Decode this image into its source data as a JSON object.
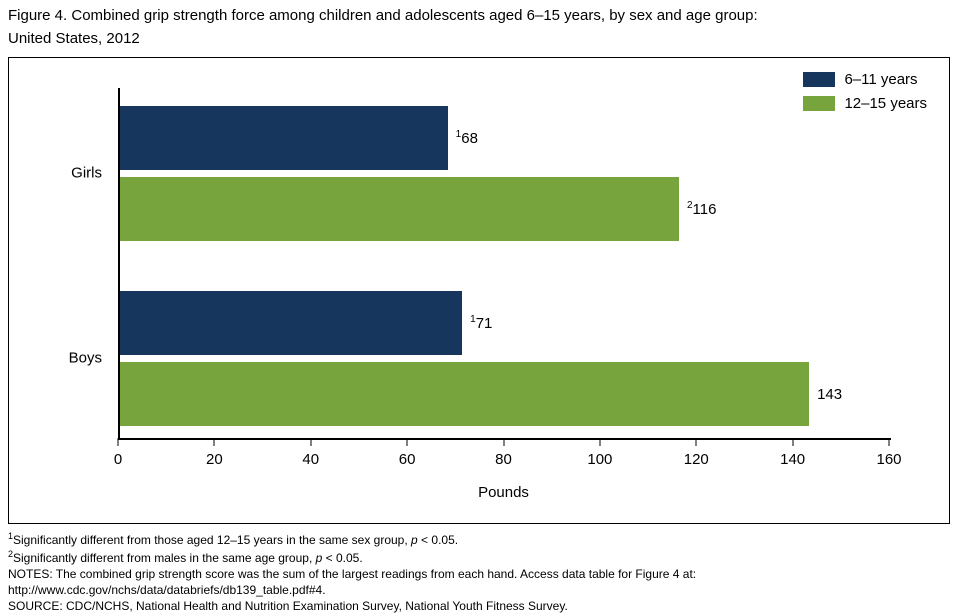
{
  "title": {
    "line1": "Figure 4. Combined grip strength force among children and adolescents aged 6–15 years, by sex and age group:",
    "line2": "United States, 2012"
  },
  "chart_data": {
    "type": "bar",
    "orientation": "horizontal",
    "title": "Combined grip strength force among children and adolescents aged 6–15 years, by sex and age group: United States, 2012",
    "categories": [
      "Girls",
      "Boys"
    ],
    "series": [
      {
        "name": "6–11 years",
        "color": "#17365d",
        "values": [
          68,
          71
        ],
        "value_labels": [
          {
            "sup": "1",
            "text": "68"
          },
          {
            "sup": "1",
            "text": "71"
          }
        ]
      },
      {
        "name": "12–15 years",
        "color": "#77a43d",
        "values": [
          116,
          143
        ],
        "value_labels": [
          {
            "sup": "2",
            "text": "116"
          },
          {
            "sup": "",
            "text": "143"
          }
        ]
      }
    ],
    "xlabel": "Pounds",
    "xlim": [
      0,
      160
    ],
    "xticks": [
      0,
      20,
      40,
      60,
      80,
      100,
      120,
      140,
      160
    ],
    "legend_position": "top-right",
    "grid": false
  },
  "footnotes": [
    {
      "sup": "1",
      "pre": "Significantly different from those aged 12–15 years in the same sex group, ",
      "italic": "p",
      "post": " < 0.05."
    },
    {
      "sup": "2",
      "pre": "Significantly different from males in the same age group, ",
      "italic": "p",
      "post": " < 0.05."
    },
    {
      "sup": "",
      "pre": "NOTES: The combined grip strength score was the sum of the largest readings from each hand. Access data table for Figure 4 at:",
      "italic": "",
      "post": ""
    },
    {
      "sup": "",
      "pre": "http://www.cdc.gov/nchs/data/databriefs/db139_table.pdf#4.",
      "italic": "",
      "post": ""
    },
    {
      "sup": "",
      "pre": "SOURCE: CDC/NCHS, National Health and Nutrition Examination Survey, National Youth Fitness Survey.",
      "italic": "",
      "post": ""
    }
  ]
}
